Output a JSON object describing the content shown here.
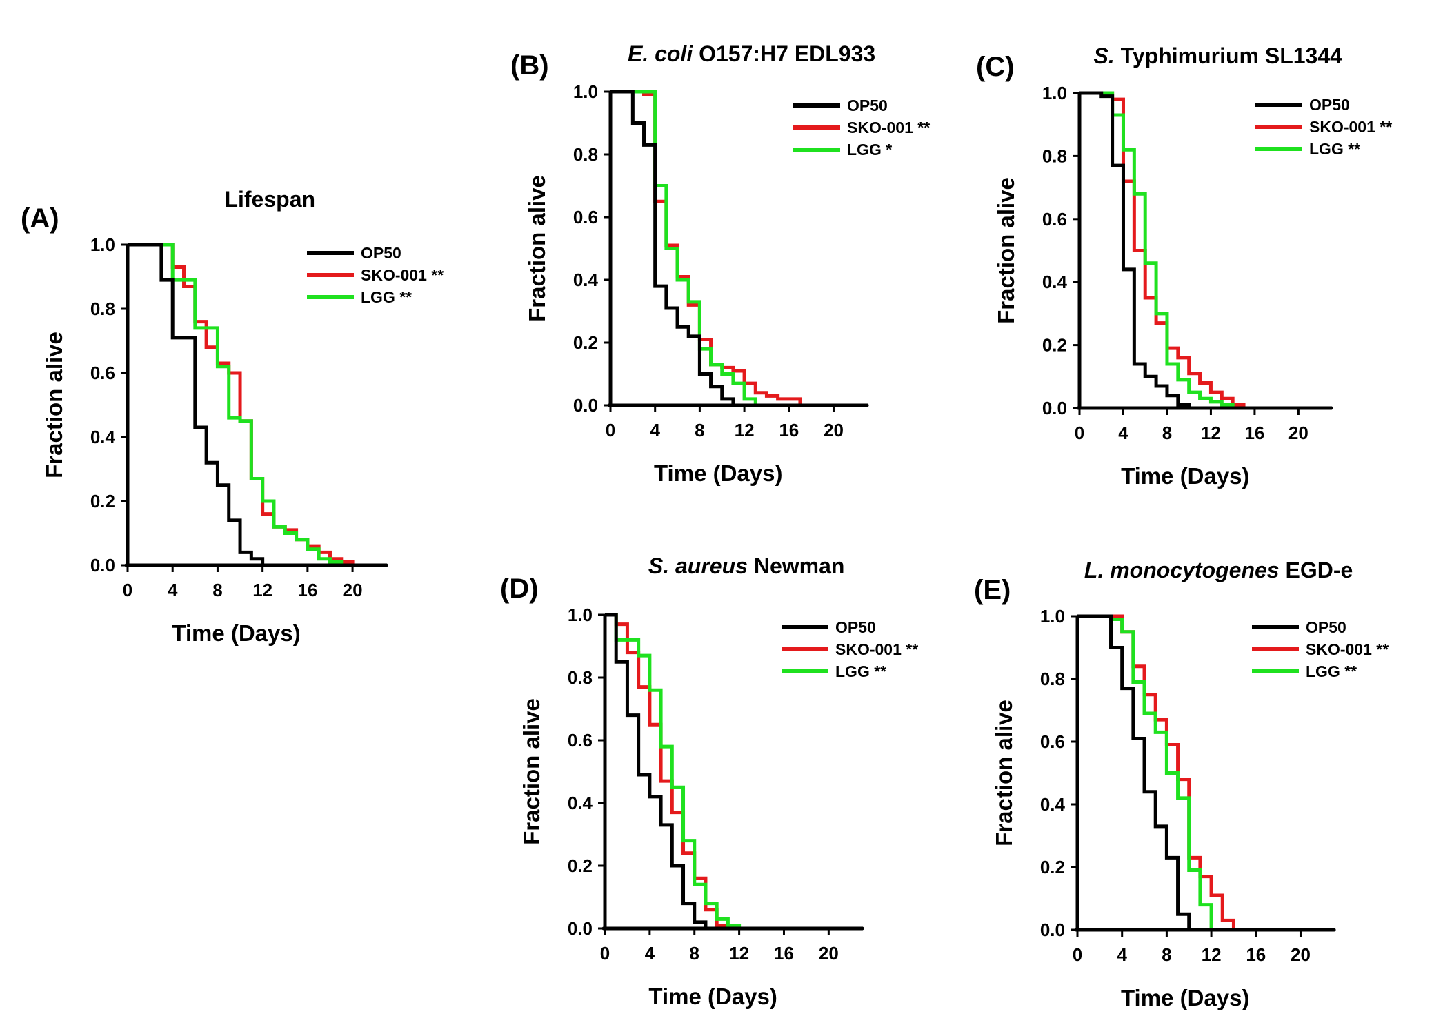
{
  "chart_data": [
    {
      "id": "A",
      "panel_label": "(A)",
      "type": "line",
      "step": true,
      "title": "Lifespan",
      "title_italic": "",
      "title_rest": "Lifespan",
      "xlabel": "Time (Days)",
      "ylabel": "Fraction alive",
      "xlim": [
        0,
        23
      ],
      "ylim": [
        0,
        1
      ],
      "xticks": [
        0,
        4,
        8,
        12,
        16,
        20
      ],
      "yticks": [
        0.0,
        0.2,
        0.4,
        0.6,
        0.8,
        1.0
      ],
      "ytick_labels": [
        "0.0",
        "0.2",
        "0.4",
        "0.6",
        "0.8",
        "1.0"
      ],
      "legend_position": "top-right",
      "series": [
        {
          "name": "OP50",
          "color": "#000000",
          "x": [
            0,
            3,
            4,
            6,
            7,
            8,
            9,
            10,
            11,
            12,
            23
          ],
          "y": [
            1.0,
            0.89,
            0.71,
            0.43,
            0.32,
            0.25,
            0.14,
            0.04,
            0.02,
            0.0,
            0.0
          ]
        },
        {
          "name": "SKO-001 **",
          "color": "#e41a1c",
          "x": [
            0,
            4,
            5,
            6,
            7,
            8,
            9,
            10,
            11,
            12,
            13,
            14,
            15,
            16,
            17,
            18,
            19,
            20,
            22
          ],
          "y": [
            1.0,
            0.93,
            0.87,
            0.76,
            0.68,
            0.63,
            0.6,
            0.45,
            0.27,
            0.16,
            0.12,
            0.11,
            0.08,
            0.06,
            0.04,
            0.02,
            0.01,
            0.0,
            0.0
          ]
        },
        {
          "name": "LGG **",
          "color": "#1fe11f",
          "x": [
            0,
            4,
            6,
            8,
            9,
            10,
            11,
            12,
            13,
            14,
            15,
            16,
            17,
            18,
            19,
            22
          ],
          "y": [
            1.0,
            0.89,
            0.74,
            0.62,
            0.46,
            0.45,
            0.27,
            0.2,
            0.12,
            0.1,
            0.08,
            0.05,
            0.02,
            0.01,
            0.0,
            0.0
          ]
        }
      ]
    },
    {
      "id": "B",
      "panel_label": "(B)",
      "type": "line",
      "step": true,
      "title": "E. coli O157:H7 EDL933",
      "title_italic": "E. coli",
      "title_rest": " O157:H7 EDL933",
      "xlabel": "Time (Days)",
      "ylabel": "Fraction alive",
      "xlim": [
        0,
        23
      ],
      "ylim": [
        0,
        1
      ],
      "xticks": [
        0,
        4,
        8,
        12,
        16,
        20
      ],
      "yticks": [
        0.0,
        0.2,
        0.4,
        0.6,
        0.8,
        1.0
      ],
      "ytick_labels": [
        "0.0",
        "0.2",
        "0.4",
        "0.6",
        "0.8",
        "1.0"
      ],
      "legend_position": "top-right",
      "series": [
        {
          "name": "OP50",
          "color": "#000000",
          "x": [
            0,
            2,
            3,
            4,
            5,
            6,
            7,
            8,
            9,
            10,
            11,
            23
          ],
          "y": [
            1.0,
            0.9,
            0.83,
            0.38,
            0.31,
            0.25,
            0.22,
            0.1,
            0.06,
            0.02,
            0.0,
            0.0
          ]
        },
        {
          "name": "SKO-001 **",
          "color": "#e41a1c",
          "x": [
            0,
            3,
            4,
            5,
            6,
            7,
            8,
            9,
            10,
            11,
            12,
            13,
            14,
            15,
            16,
            17,
            22
          ],
          "y": [
            1.0,
            0.99,
            0.65,
            0.51,
            0.41,
            0.32,
            0.21,
            0.13,
            0.12,
            0.11,
            0.07,
            0.04,
            0.03,
            0.02,
            0.02,
            0.0,
            0.0
          ]
        },
        {
          "name": "LGG *",
          "color": "#1fe11f",
          "x": [
            0,
            4,
            5,
            6,
            7,
            8,
            9,
            10,
            11,
            12,
            13,
            22
          ],
          "y": [
            1.0,
            0.7,
            0.5,
            0.4,
            0.33,
            0.18,
            0.13,
            0.1,
            0.07,
            0.02,
            0.0,
            0.0
          ]
        }
      ]
    },
    {
      "id": "C",
      "panel_label": "(C)",
      "type": "line",
      "step": true,
      "title": "S. Typhimurium SL1344",
      "title_italic": "S.",
      "title_rest": " Typhimurium SL1344",
      "xlabel": "Time (Days)",
      "ylabel": "Fraction alive",
      "xlim": [
        0,
        23
      ],
      "ylim": [
        0,
        1
      ],
      "xticks": [
        0,
        4,
        8,
        12,
        16,
        20
      ],
      "yticks": [
        0.0,
        0.2,
        0.4,
        0.6,
        0.8,
        1.0
      ],
      "ytick_labels": [
        "0.0",
        "0.2",
        "0.4",
        "0.6",
        "0.8",
        "1.0"
      ],
      "legend_position": "top-right",
      "series": [
        {
          "name": "OP50",
          "color": "#000000",
          "x": [
            0,
            2,
            3,
            4,
            5,
            6,
            7,
            8,
            9,
            10,
            23
          ],
          "y": [
            1.0,
            0.99,
            0.77,
            0.44,
            0.14,
            0.1,
            0.07,
            0.04,
            0.01,
            0.0,
            0.0
          ]
        },
        {
          "name": "SKO-001 **",
          "color": "#e41a1c",
          "x": [
            0,
            3,
            4,
            5,
            6,
            7,
            8,
            9,
            10,
            11,
            12,
            13,
            14,
            15,
            22
          ],
          "y": [
            1.0,
            0.98,
            0.72,
            0.5,
            0.35,
            0.27,
            0.19,
            0.16,
            0.11,
            0.08,
            0.05,
            0.03,
            0.01,
            0.0,
            0.0
          ]
        },
        {
          "name": "LGG **",
          "color": "#1fe11f",
          "x": [
            0,
            3,
            4,
            5,
            6,
            7,
            8,
            9,
            10,
            11,
            12,
            13,
            14,
            22
          ],
          "y": [
            1.0,
            0.93,
            0.82,
            0.68,
            0.46,
            0.3,
            0.14,
            0.09,
            0.05,
            0.03,
            0.02,
            0.01,
            0.0,
            0.0
          ]
        }
      ]
    },
    {
      "id": "D",
      "panel_label": "(D)",
      "type": "line",
      "step": true,
      "title": "S. aureus Newman",
      "title_italic": "S. aureus",
      "title_rest": " Newman",
      "xlabel": "Time (Days)",
      "ylabel": "Fraction alive",
      "xlim": [
        0,
        23
      ],
      "ylim": [
        0,
        1
      ],
      "xticks": [
        0,
        4,
        8,
        12,
        16,
        20
      ],
      "yticks": [
        0.0,
        0.2,
        0.4,
        0.6,
        0.8,
        1.0
      ],
      "ytick_labels": [
        "0.0",
        "0.2",
        "0.4",
        "0.6",
        "0.8",
        "1.0"
      ],
      "legend_position": "top-right",
      "series": [
        {
          "name": "OP50",
          "color": "#000000",
          "x": [
            0,
            1,
            2,
            3,
            4,
            5,
            6,
            7,
            8,
            9,
            23
          ],
          "y": [
            1.0,
            0.85,
            0.68,
            0.49,
            0.42,
            0.33,
            0.2,
            0.08,
            0.02,
            0.0,
            0.0
          ]
        },
        {
          "name": "SKO-001 **",
          "color": "#e41a1c",
          "x": [
            0,
            1,
            2,
            3,
            4,
            5,
            6,
            7,
            8,
            9,
            10,
            11,
            22
          ],
          "y": [
            1.0,
            0.97,
            0.88,
            0.77,
            0.65,
            0.47,
            0.37,
            0.24,
            0.16,
            0.06,
            0.01,
            0.0,
            0.0
          ]
        },
        {
          "name": "LGG **",
          "color": "#1fe11f",
          "x": [
            0,
            1,
            3,
            4,
            5,
            6,
            7,
            8,
            9,
            10,
            11,
            12,
            22
          ],
          "y": [
            1.0,
            0.92,
            0.87,
            0.76,
            0.58,
            0.45,
            0.28,
            0.14,
            0.08,
            0.03,
            0.01,
            0.0,
            0.0
          ]
        }
      ]
    },
    {
      "id": "E",
      "panel_label": "(E)",
      "type": "line",
      "step": true,
      "title": "L. monocytogenes EGD-e",
      "title_italic": "L. monocytogenes",
      "title_rest": " EGD-e",
      "xlabel": "Time (Days)",
      "ylabel": "Fraction alive",
      "xlim": [
        0,
        23
      ],
      "ylim": [
        0,
        1
      ],
      "xticks": [
        0,
        4,
        8,
        12,
        16,
        20
      ],
      "yticks": [
        0.0,
        0.2,
        0.4,
        0.6,
        0.8,
        1.0
      ],
      "ytick_labels": [
        "0.0",
        "0.2",
        "0.4",
        "0.6",
        "0.8",
        "1.0"
      ],
      "legend_position": "top-right",
      "series": [
        {
          "name": "OP50",
          "color": "#000000",
          "x": [
            0,
            3,
            4,
            5,
            6,
            7,
            8,
            9,
            10,
            23
          ],
          "y": [
            1.0,
            0.9,
            0.77,
            0.61,
            0.44,
            0.33,
            0.23,
            0.05,
            0.0,
            0.0
          ]
        },
        {
          "name": "SKO-001 **",
          "color": "#e41a1c",
          "x": [
            0,
            4,
            5,
            6,
            7,
            8,
            9,
            10,
            11,
            12,
            13,
            14,
            22
          ],
          "y": [
            1.0,
            0.95,
            0.84,
            0.75,
            0.67,
            0.59,
            0.48,
            0.23,
            0.17,
            0.11,
            0.03,
            0.0,
            0.0
          ]
        },
        {
          "name": "LGG **",
          "color": "#1fe11f",
          "x": [
            0,
            3,
            4,
            5,
            6,
            7,
            8,
            9,
            10,
            11,
            12,
            22
          ],
          "y": [
            1.0,
            0.99,
            0.95,
            0.79,
            0.69,
            0.63,
            0.5,
            0.42,
            0.19,
            0.08,
            0.0,
            0.0
          ]
        }
      ]
    }
  ]
}
